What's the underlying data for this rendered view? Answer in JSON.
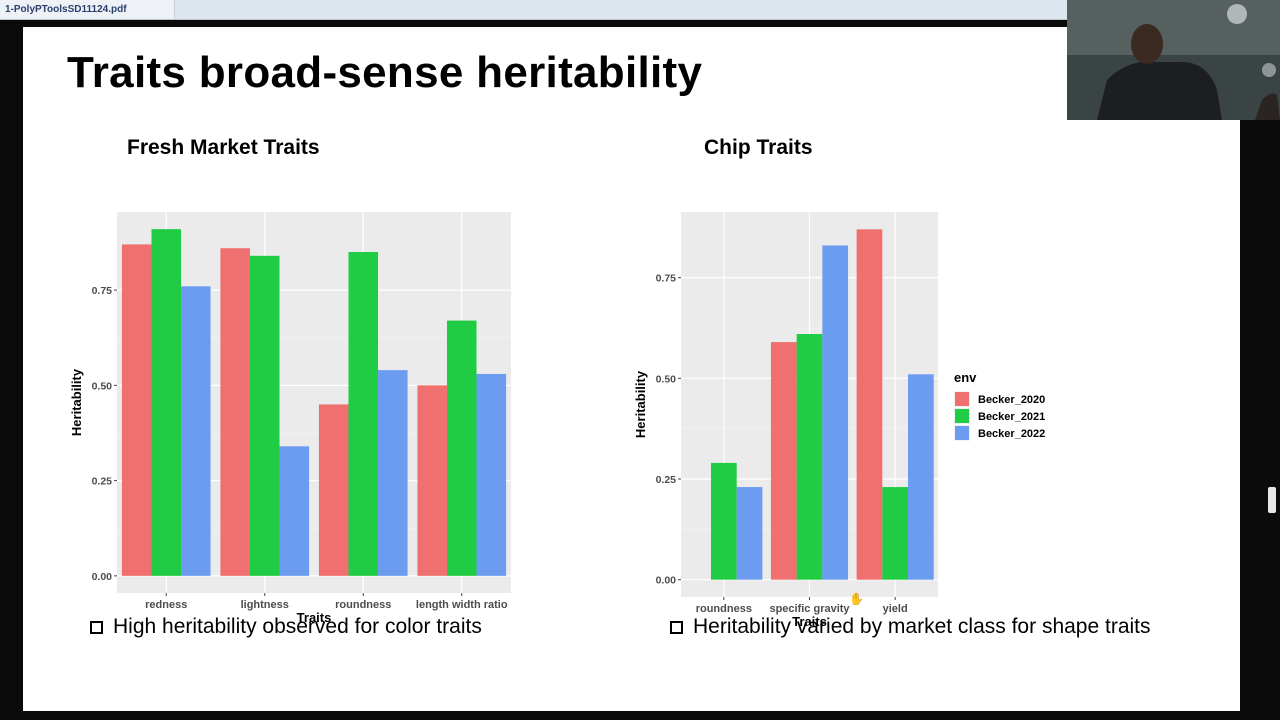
{
  "tab": {
    "title": "1-PolyPToolsSD11124.pdf"
  },
  "slide": {
    "title": "Traits broad-sense heritability",
    "bullets": [
      "High heritability observed for color traits",
      "Heritability varied by market class for shape traits"
    ]
  },
  "legend": {
    "title": "env",
    "items": [
      "Becker_2020",
      "Becker_2021",
      "Becker_2022"
    ],
    "colors": [
      "#F07070",
      "#1FCC44",
      "#6C9CF0"
    ]
  },
  "chart_data": [
    {
      "type": "bar",
      "title": "Fresh Market Traits",
      "xlabel": "Traits",
      "ylabel": "Heritability",
      "categories": [
        "redness",
        "lightness",
        "roundness",
        "length width ratio"
      ],
      "series": [
        {
          "name": "Becker_2020",
          "values": [
            0.87,
            0.86,
            0.45,
            0.5
          ]
        },
        {
          "name": "Becker_2021",
          "values": [
            0.91,
            0.84,
            0.85,
            0.67
          ]
        },
        {
          "name": "Becker_2022",
          "values": [
            0.76,
            0.34,
            0.54,
            0.53
          ]
        }
      ],
      "yticks": [
        "0.00",
        "0.25",
        "0.50",
        "0.75"
      ],
      "ylim": [
        -0.045,
        0.955
      ],
      "grid": true,
      "legend": "none"
    },
    {
      "type": "bar",
      "title": "Chip Traits",
      "xlabel": "Traits",
      "ylabel": "Heritability",
      "categories": [
        "roundness",
        "specific gravity",
        "yield"
      ],
      "series": [
        {
          "name": "Becker_2020",
          "values": [
            0.0,
            0.59,
            0.87
          ]
        },
        {
          "name": "Becker_2021",
          "values": [
            0.29,
            0.61,
            0.23
          ]
        },
        {
          "name": "Becker_2022",
          "values": [
            0.23,
            0.83,
            0.51
          ]
        }
      ],
      "yticks": [
        "0.00",
        "0.25",
        "0.50",
        "0.75"
      ],
      "ylim": [
        -0.043,
        0.913
      ],
      "grid": true,
      "legend": "right"
    }
  ]
}
